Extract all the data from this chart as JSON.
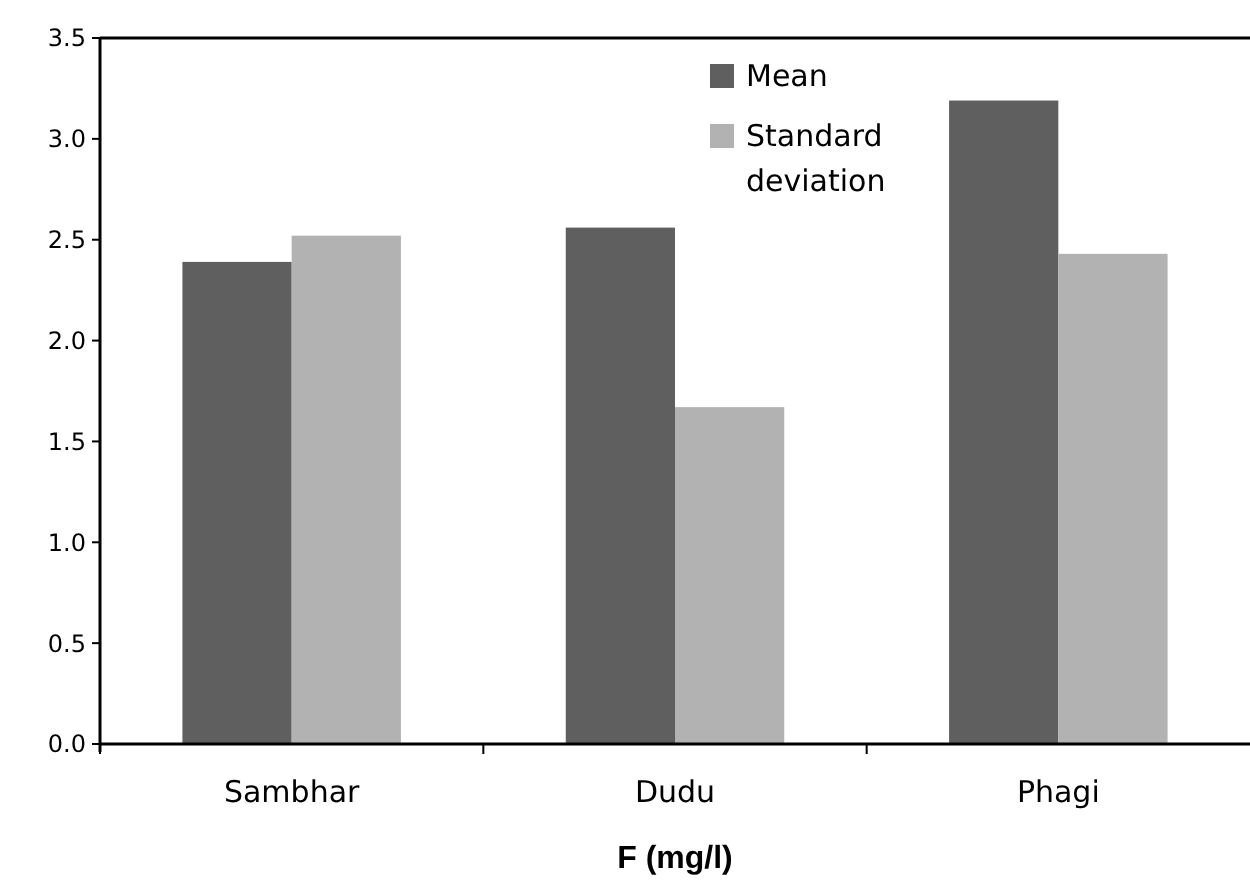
{
  "chart_data": {
    "type": "bar",
    "xlabel": "F (mg/l)",
    "categories": [
      "Sambhar",
      "Dudu",
      "Phagi"
    ],
    "series": [
      {
        "name": "Mean",
        "color": "#5f5f5f",
        "values": [
          2.39,
          2.56,
          3.19
        ]
      },
      {
        "name": "Standard deviation",
        "color": "#b2b2b2",
        "values": [
          2.52,
          1.67,
          2.43
        ]
      }
    ],
    "ylim": [
      0,
      3.5
    ],
    "yticks": [
      {
        "value": 0,
        "label": "0.0"
      },
      {
        "value": 0.5,
        "label": "0.5"
      },
      {
        "value": 1,
        "label": "1.0"
      },
      {
        "value": 1.5,
        "label": "1.5"
      },
      {
        "value": 2,
        "label": "2.0"
      },
      {
        "value": 2.5,
        "label": "2.5"
      },
      {
        "value": 3,
        "label": "3.0"
      },
      {
        "value": 3.5,
        "label": "3.5"
      }
    ],
    "grid": false,
    "legend": "top right"
  }
}
